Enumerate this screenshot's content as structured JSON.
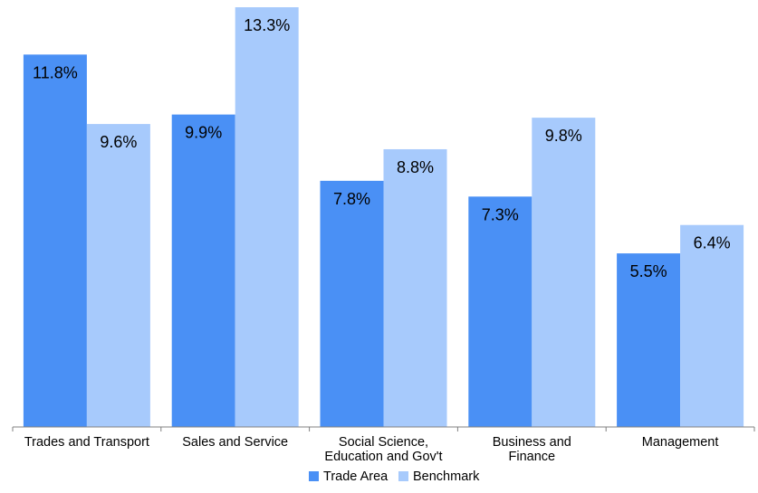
{
  "chart_data": {
    "type": "bar",
    "categories": [
      [
        "Trades and Transport"
      ],
      [
        "Sales and Service"
      ],
      [
        "Social Science,",
        "Education and Gov't"
      ],
      [
        "Business and",
        "Finance"
      ],
      [
        "Management"
      ]
    ],
    "series": [
      {
        "name": "Trade Area",
        "values": [
          11.8,
          9.9,
          7.8,
          7.3,
          5.5
        ],
        "labels": [
          "11.8%",
          "9.9%",
          "7.8%",
          "7.3%",
          "5.5%"
        ],
        "color": "#4a90f5"
      },
      {
        "name": "Benchmark",
        "values": [
          9.6,
          13.3,
          8.8,
          9.8,
          6.4
        ],
        "labels": [
          "9.6%",
          "13.3%",
          "8.8%",
          "9.8%",
          "6.4%"
        ],
        "color": "#a7cafc"
      }
    ],
    "ylim": [
      0,
      13.3
    ],
    "grid": false,
    "legend": "bottom",
    "title": "",
    "xlabel": "",
    "ylabel": ""
  }
}
